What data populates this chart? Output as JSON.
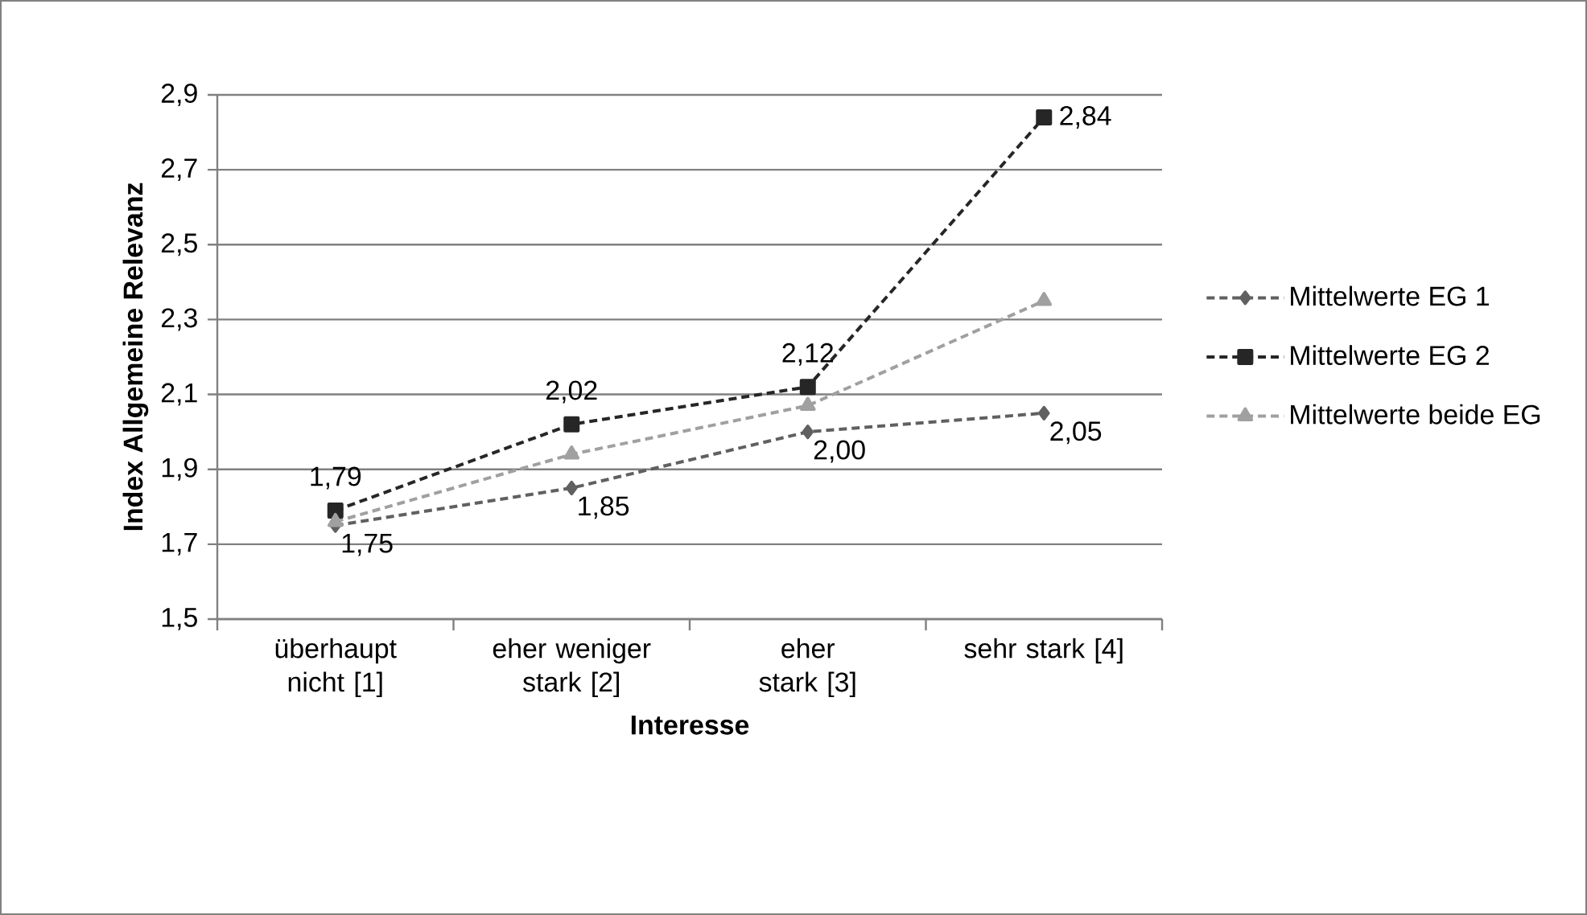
{
  "chart_data": {
    "type": "line",
    "xlabel": "Interesse",
    "ylabel": "Index Allgemeine Relevanz",
    "categories": [
      "überhaupt nicht [1]",
      "eher weniger stark [2]",
      "eher stark [3]",
      "sehr stark [4]"
    ],
    "series": [
      {
        "name": "Mittelwerte EG 1",
        "color": "#606060",
        "marker": "diamond",
        "values": [
          1.75,
          1.85,
          2.0,
          2.05
        ],
        "value_labels": [
          "1,75",
          "1,85",
          "2,00",
          "2,05"
        ]
      },
      {
        "name": "Mittelwerte EG 2",
        "color": "#262626",
        "marker": "square",
        "values": [
          1.79,
          2.02,
          2.12,
          2.84
        ],
        "value_labels": [
          "1,79",
          "2,02",
          "2,12",
          "2,84"
        ]
      },
      {
        "name": "Mittelwerte beide EG",
        "color": "#a0a0a0",
        "marker": "triangle",
        "values": [
          1.76,
          1.94,
          2.07,
          2.35
        ]
      }
    ],
    "ylim": [
      1.5,
      2.9
    ],
    "yticks": [
      {
        "value": 1.5,
        "label": "1,5"
      },
      {
        "value": 1.7,
        "label": "1,7"
      },
      {
        "value": 1.9,
        "label": "1,9"
      },
      {
        "value": 2.1,
        "label": "2,1"
      },
      {
        "value": 2.3,
        "label": "2,3"
      },
      {
        "value": 2.5,
        "label": "2,5"
      },
      {
        "value": 2.7,
        "label": "2,7"
      },
      {
        "value": 2.9,
        "label": "2,9"
      }
    ],
    "grid": "y",
    "legend": "right",
    "line_style": "dashed"
  }
}
